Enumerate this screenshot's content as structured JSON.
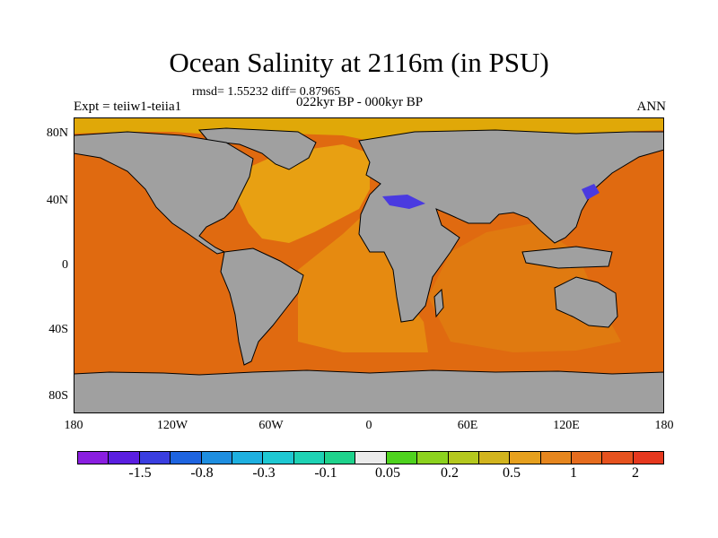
{
  "title": "Ocean Salinity at 2116m (in PSU)",
  "stats": "rmsd= 1.55232 diff= 0.87965",
  "period": "022kyr BP - 000kyr BP",
  "experiment": "Expt = teiiw1-teiia1",
  "season": "ANN",
  "y_axis": [
    "80N",
    "40N",
    "0",
    "40S",
    "80S"
  ],
  "x_axis": [
    "180",
    "120W",
    "60W",
    "0",
    "60E",
    "120E",
    "180"
  ],
  "colorbar": {
    "colors": [
      "#8a1ee0",
      "#5a1ee0",
      "#3a3ee0",
      "#1e64e0",
      "#1e8ee0",
      "#1eb0e0",
      "#1ec8d2",
      "#1ed2b4",
      "#1ed28c",
      "#ebebeb",
      "#4ed21e",
      "#8cd21e",
      "#b4c81e",
      "#d2b41e",
      "#e6a01e",
      "#e6861e",
      "#e66c1e",
      "#e6521e",
      "#e6381e"
    ],
    "labels": [
      "-1.5",
      "-0.8",
      "-0.3",
      "-0.1",
      "0.05",
      "0.2",
      "0.5",
      "1",
      "2"
    ]
  },
  "map_colors": {
    "land": "#a0a0a0",
    "pacific": "#e06a10",
    "indian": "#e07a10",
    "atlantic_south": "#e68a10",
    "atlantic_north": "#e8a012",
    "arctic": "#e0a808",
    "negative_patch": "#4a3ae0"
  }
}
